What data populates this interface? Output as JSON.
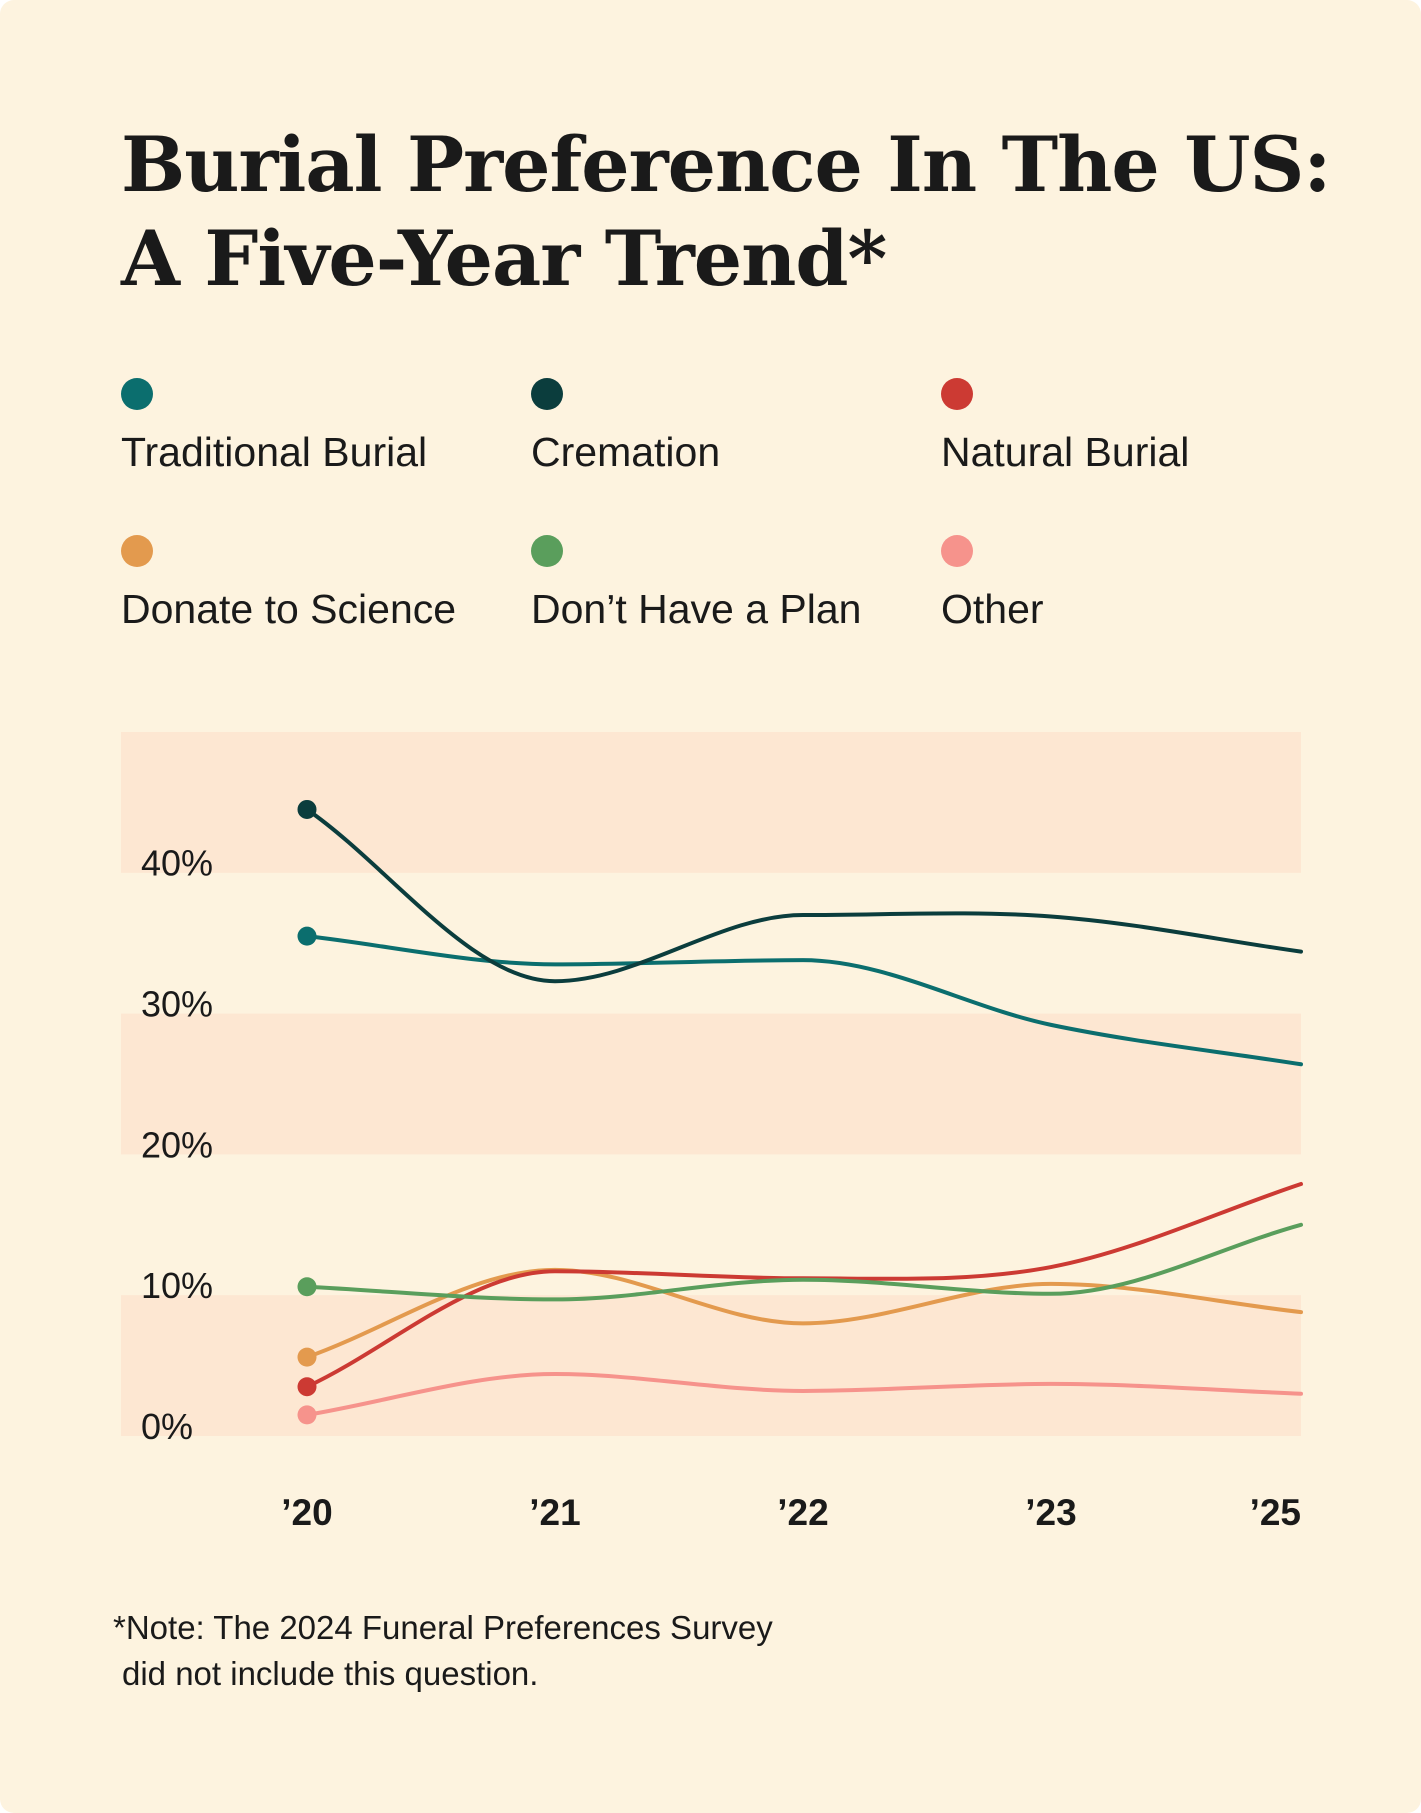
{
  "title": {
    "line1": "Burial Preference In The US:",
    "line2": "A Five-Year Trend*"
  },
  "colors": {
    "background": "#fdf3df",
    "band": "#fde7d2",
    "text": "#1a1a1a"
  },
  "legend": [
    {
      "label": "Traditional Burial",
      "color": "#0b6e6e"
    },
    {
      "label": "Cremation",
      "color": "#0b3d3d"
    },
    {
      "label": "Natural Burial",
      "color": "#cc3a33"
    },
    {
      "label": "Donate to Science",
      "color": "#e39a4e"
    },
    {
      "label": "Don’t Have a Plan",
      "color": "#5a9e5c"
    },
    {
      "label": "Other",
      "color": "#f6938c"
    }
  ],
  "chart_data": {
    "type": "line",
    "title": "Burial Preference In The US: A Five-Year Trend*",
    "xlabel": "",
    "ylabel": "",
    "categories": [
      "’20",
      "’21",
      "’22",
      "’23",
      "’25"
    ],
    "y_ticks": [
      "0%",
      "10%",
      "20%",
      "30%",
      "40%"
    ],
    "y_tick_values": [
      0,
      10,
      20,
      30,
      40
    ],
    "ylim": [
      -1,
      49
    ],
    "grid": "alternating horizontal bands",
    "legend_position": "top",
    "series": [
      {
        "name": "Traditional Burial",
        "color": "#0b6e6e",
        "values": [
          34.5,
          32.5,
          32.8,
          28.2,
          25.4
        ]
      },
      {
        "name": "Cremation",
        "color": "#0b3d3d",
        "values": [
          43.5,
          31.3,
          36.0,
          35.9,
          33.4
        ]
      },
      {
        "name": "Natural Burial",
        "color": "#cc3a33",
        "values": [
          2.5,
          10.7,
          10.2,
          11.0,
          16.9
        ]
      },
      {
        "name": "Donate to Science",
        "color": "#e39a4e",
        "values": [
          4.6,
          10.8,
          7.0,
          9.8,
          7.8
        ]
      },
      {
        "name": "Don’t Have a Plan",
        "color": "#5a9e5c",
        "values": [
          9.6,
          8.7,
          10.1,
          9.1,
          14.0
        ]
      },
      {
        "name": "Other",
        "color": "#f6938c",
        "values": [
          0.5,
          3.4,
          2.2,
          2.7,
          2.0
        ]
      }
    ]
  },
  "note": {
    "line1": "*Note: The 2024 Funeral Preferences Survey",
    "line2": "did not include this question."
  }
}
